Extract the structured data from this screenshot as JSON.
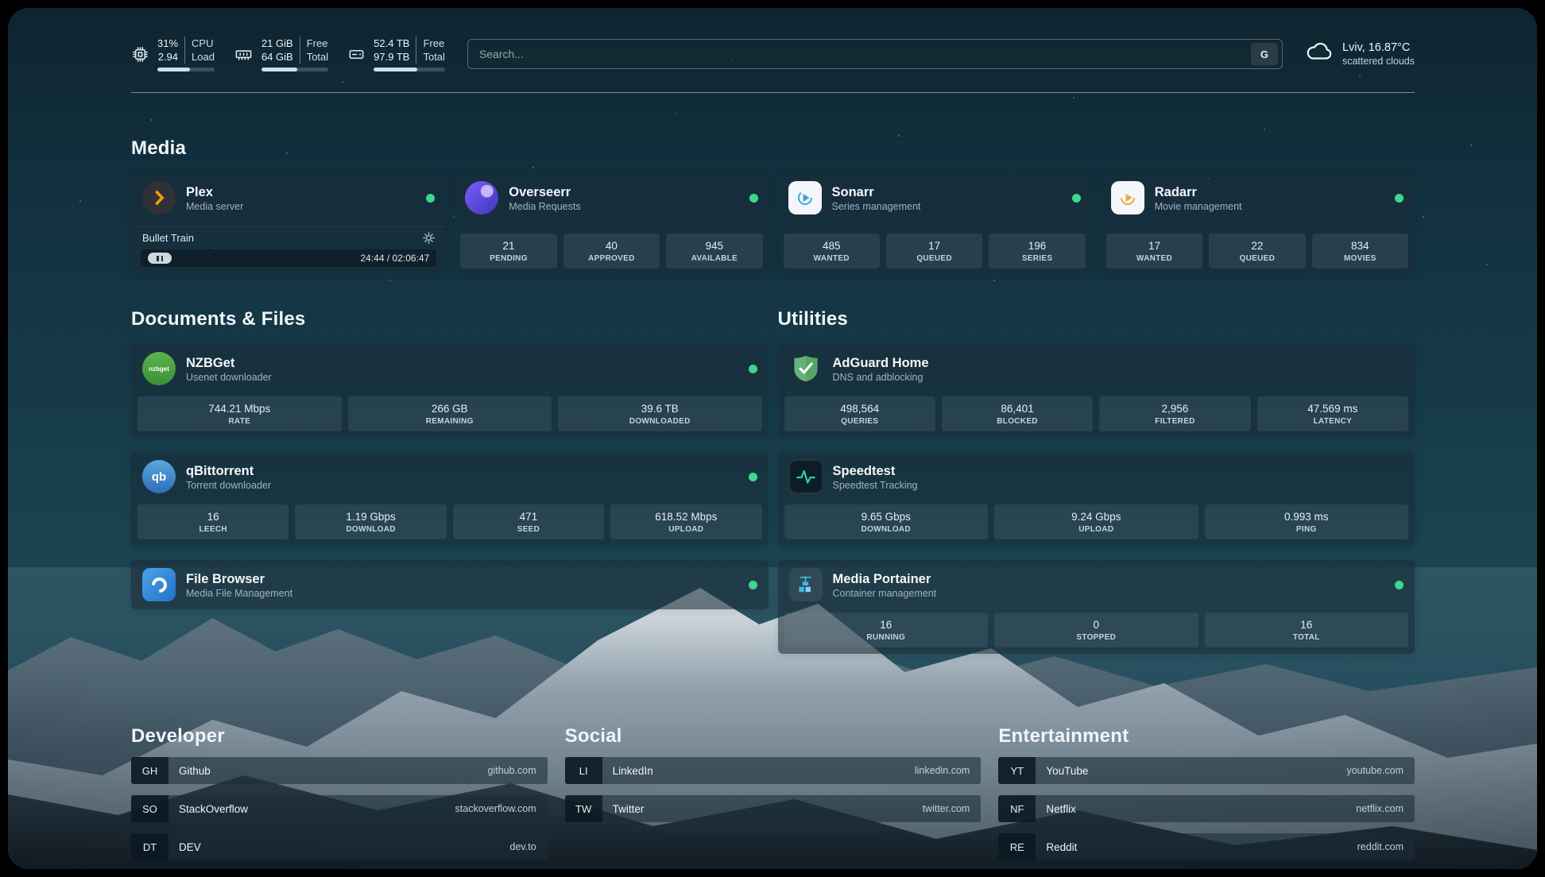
{
  "topbar": {
    "cpu": {
      "value_top": "31%",
      "value_bottom": "2.94",
      "label_top": "CPU",
      "label_bottom": "Load",
      "bar_pct": 57
    },
    "memory": {
      "value_top": "21 GiB",
      "value_bottom": "64 GiB",
      "label_top": "Free",
      "label_bottom": "Total",
      "bar_pct": 54
    },
    "disk": {
      "value_top": "52.4 TB",
      "value_bottom": "97.9 TB",
      "label_top": "Free",
      "label_bottom": "Total",
      "bar_pct": 61
    },
    "search": {
      "placeholder": "Search...",
      "provider_label": "G"
    },
    "weather": {
      "location": "Lviv, 16.87°C",
      "condition": "scattered clouds"
    }
  },
  "media": {
    "title": "Media",
    "plex": {
      "name": "Plex",
      "subtitle": "Media server",
      "now_playing": "Bullet Train",
      "time": "24:44 / 02:06:47"
    },
    "overseerr": {
      "name": "Overseerr",
      "subtitle": "Media Requests",
      "stats": [
        {
          "value": "21",
          "label": "PENDING"
        },
        {
          "value": "40",
          "label": "APPROVED"
        },
        {
          "value": "945",
          "label": "AVAILABLE"
        }
      ]
    },
    "sonarr": {
      "name": "Sonarr",
      "subtitle": "Series management",
      "stats": [
        {
          "value": "485",
          "label": "WANTED"
        },
        {
          "value": "17",
          "label": "QUEUED"
        },
        {
          "value": "196",
          "label": "SERIES"
        }
      ]
    },
    "radarr": {
      "name": "Radarr",
      "subtitle": "Movie management",
      "stats": [
        {
          "value": "17",
          "label": "WANTED"
        },
        {
          "value": "22",
          "label": "QUEUED"
        },
        {
          "value": "834",
          "label": "MOVIES"
        }
      ]
    }
  },
  "documents": {
    "title": "Documents & Files",
    "nzbget": {
      "name": "NZBGet",
      "subtitle": "Usenet downloader",
      "stats": [
        {
          "value": "744.21 Mbps",
          "label": "RATE"
        },
        {
          "value": "266 GB",
          "label": "REMAINING"
        },
        {
          "value": "39.6 TB",
          "label": "DOWNLOADED"
        }
      ]
    },
    "qbittorrent": {
      "name": "qBittorrent",
      "subtitle": "Torrent downloader",
      "stats": [
        {
          "value": "16",
          "label": "LEECH"
        },
        {
          "value": "1.19 Gbps",
          "label": "DOWNLOAD"
        },
        {
          "value": "471",
          "label": "SEED"
        },
        {
          "value": "618.52 Mbps",
          "label": "UPLOAD"
        }
      ]
    },
    "filebrowser": {
      "name": "File Browser",
      "subtitle": "Media File Management"
    }
  },
  "utilities": {
    "title": "Utilities",
    "adguard": {
      "name": "AdGuard Home",
      "subtitle": "DNS and adblocking",
      "stats": [
        {
          "value": "498,564",
          "label": "QUERIES"
        },
        {
          "value": "86,401",
          "label": "BLOCKED"
        },
        {
          "value": "2,956",
          "label": "FILTERED"
        },
        {
          "value": "47.569 ms",
          "label": "LATENCY"
        }
      ]
    },
    "speedtest": {
      "name": "Speedtest",
      "subtitle": "Speedtest Tracking",
      "stats": [
        {
          "value": "9.65 Gbps",
          "label": "DOWNLOAD"
        },
        {
          "value": "9.24 Gbps",
          "label": "UPLOAD"
        },
        {
          "value": "0.993 ms",
          "label": "PING"
        }
      ]
    },
    "portainer": {
      "name": "Media Portainer",
      "subtitle": "Container management",
      "stats": [
        {
          "value": "16",
          "label": "RUNNING"
        },
        {
          "value": "0",
          "label": "STOPPED"
        },
        {
          "value": "16",
          "label": "TOTAL"
        }
      ]
    }
  },
  "bookmarks": {
    "developer": {
      "title": "Developer",
      "items": [
        {
          "abbr": "GH",
          "name": "Github",
          "url": "github.com"
        },
        {
          "abbr": "SO",
          "name": "StackOverflow",
          "url": "stackoverflow.com"
        },
        {
          "abbr": "DT",
          "name": "DEV",
          "url": "dev.to"
        }
      ]
    },
    "social": {
      "title": "Social",
      "items": [
        {
          "abbr": "LI",
          "name": "LinkedIn",
          "url": "linkedin.com"
        },
        {
          "abbr": "TW",
          "name": "Twitter",
          "url": "twitter.com"
        }
      ]
    },
    "entertainment": {
      "title": "Entertainment",
      "items": [
        {
          "abbr": "YT",
          "name": "YouTube",
          "url": "youtube.com"
        },
        {
          "abbr": "NF",
          "name": "Netflix",
          "url": "netflix.com"
        },
        {
          "abbr": "RE",
          "name": "Reddit",
          "url": "reddit.com"
        }
      ]
    }
  },
  "icons": {
    "nzbget_label": "nzbget",
    "qbittorrent_label": "qb"
  },
  "colors": {
    "status_online": "#3fd68f",
    "plex_amber": "#e5a00d",
    "adguard_green": "#67b279",
    "sonarr_blue": "#35a5e5",
    "radarr_orange": "#f2a33c",
    "portainer_blue": "#3db9e5",
    "speedtest_green": "#2dd4a0"
  }
}
